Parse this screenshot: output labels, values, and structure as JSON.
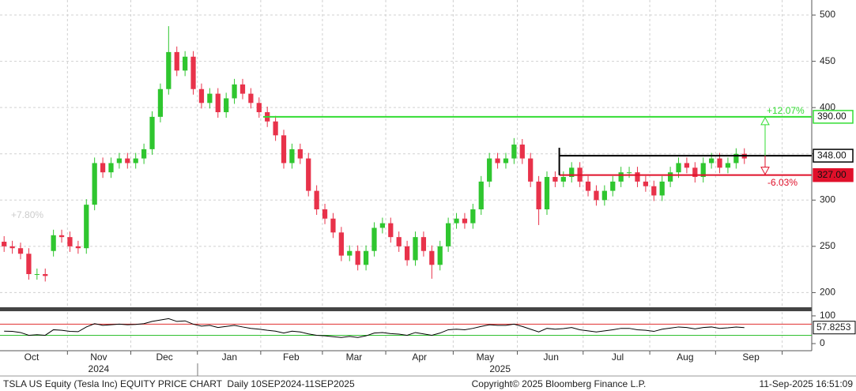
{
  "chart_data": [
    {
      "type": "candlestick",
      "xlim": [
        -0.5,
        98
      ],
      "xticks": [
        {
          "value": 3.34,
          "label": "Oct"
        },
        {
          "value": 11.5,
          "label": "Nov"
        },
        {
          "value": 19.5,
          "label": "Dec"
        },
        {
          "value": 27.4,
          "label": "Jan"
        },
        {
          "value": 34.9,
          "label": "Feb"
        },
        {
          "value": 42.55,
          "label": "Mar"
        },
        {
          "value": 50.5,
          "label": "Apr"
        },
        {
          "value": 58.5,
          "label": "May"
        },
        {
          "value": 66.5,
          "label": "Jun"
        },
        {
          "value": 74.6,
          "label": "Jul"
        },
        {
          "value": 82.8,
          "label": "Aug"
        },
        {
          "value": 90.8,
          "label": "Sep"
        }
      ],
      "year_labels": [
        {
          "value": 11.5,
          "label": "2024"
        },
        {
          "value": 60.3,
          "label": "2025"
        }
      ],
      "xgrid": [
        7.7,
        15.4,
        23.5,
        31.2,
        38.7,
        46.4,
        54.6,
        62.4,
        70.4,
        78.5,
        86.5,
        94.6
      ],
      "ylim": [
        185,
        512
      ],
      "yticks": [
        200,
        250,
        300,
        350,
        400,
        450,
        500
      ],
      "grid": true,
      "up_color": "#2fc62f",
      "down_color": "#e8324a",
      "open": [
        255,
        250,
        248,
        242,
        220,
        220,
        245,
        262,
        260,
        250,
        248,
        295,
        340,
        330,
        340,
        345,
        340,
        345,
        355,
        390,
        420,
        460,
        440,
        455,
        420,
        405,
        415,
        395,
        410,
        425,
        415,
        405,
        395,
        385,
        370,
        340,
        355,
        345,
        310,
        290,
        280,
        265,
        240,
        245,
        230,
        245,
        270,
        275,
        260,
        250,
        235,
        260,
        245,
        230,
        250,
        275,
        280,
        275,
        290,
        320,
        345,
        340,
        345,
        360,
        345,
        320,
        290,
        325,
        320,
        325,
        335,
        320,
        310,
        300,
        310,
        320,
        330,
        330,
        320,
        315,
        305,
        320,
        330,
        340,
        335,
        325,
        340,
        345,
        335,
        340,
        350
      ],
      "high": [
        261,
        256,
        254,
        248,
        226,
        226,
        268,
        268,
        266,
        256,
        301,
        346,
        346,
        346,
        351,
        351,
        351,
        361,
        396,
        426,
        488,
        466,
        461,
        461,
        426,
        421,
        421,
        416,
        431,
        431,
        421,
        411,
        401,
        391,
        376,
        361,
        361,
        351,
        316,
        296,
        286,
        271,
        251,
        251,
        251,
        276,
        281,
        281,
        266,
        256,
        266,
        266,
        251,
        256,
        281,
        286,
        286,
        296,
        326,
        351,
        351,
        351,
        367,
        366,
        351,
        326,
        331,
        331,
        331,
        341,
        341,
        326,
        316,
        316,
        326,
        336,
        336,
        336,
        326,
        321,
        326,
        336,
        346,
        346,
        341,
        346,
        351,
        351,
        346,
        356,
        356
      ],
      "low": [
        244,
        242,
        236,
        214,
        214,
        212,
        239,
        254,
        244,
        242,
        242,
        289,
        324,
        324,
        334,
        334,
        334,
        339,
        349,
        384,
        414,
        434,
        434,
        414,
        399,
        399,
        389,
        389,
        404,
        409,
        399,
        389,
        379,
        364,
        334,
        334,
        339,
        304,
        284,
        274,
        259,
        234,
        234,
        224,
        224,
        239,
        264,
        254,
        244,
        229,
        229,
        239,
        215,
        224,
        244,
        269,
        269,
        269,
        284,
        314,
        334,
        334,
        339,
        339,
        314,
        273,
        284,
        314,
        314,
        319,
        314,
        304,
        294,
        294,
        304,
        314,
        324,
        314,
        309,
        299,
        299,
        314,
        324,
        329,
        319,
        319,
        334,
        329,
        329,
        334,
        339
      ],
      "close": [
        250,
        248,
        242,
        220,
        220,
        218,
        262,
        260,
        250,
        248,
        295,
        340,
        330,
        340,
        345,
        340,
        345,
        355,
        390,
        420,
        460,
        440,
        455,
        420,
        405,
        415,
        395,
        410,
        425,
        415,
        405,
        395,
        385,
        370,
        340,
        355,
        345,
        310,
        290,
        280,
        265,
        240,
        245,
        230,
        245,
        270,
        275,
        260,
        250,
        235,
        260,
        245,
        230,
        250,
        275,
        280,
        275,
        290,
        320,
        345,
        340,
        345,
        360,
        345,
        320,
        290,
        325,
        320,
        325,
        335,
        320,
        310,
        300,
        310,
        320,
        330,
        330,
        320,
        315,
        305,
        320,
        330,
        340,
        335,
        325,
        340,
        345,
        335,
        340,
        350,
        345
      ],
      "levels": [
        {
          "value": 390,
          "label": "390.00",
          "color": "#33dd33"
        },
        {
          "value": 348,
          "label": "348.00",
          "color": "#000000"
        },
        {
          "value": 327,
          "label": "327.00",
          "color": "#e0102a"
        }
      ],
      "annotations": [
        "+12.07%",
        "-6.03%",
        "+7.80%"
      ]
    },
    {
      "type": "line",
      "ylim": [
        -20,
        114
      ],
      "yticks": [
        0,
        100
      ],
      "color": "#000000",
      "reference_lines": [
        {
          "value": 70,
          "color": "#e03030"
        },
        {
          "value": 30,
          "color": "#30c030"
        }
      ],
      "values": [
        45,
        44,
        40,
        30,
        32,
        30,
        50,
        48,
        44,
        43,
        60,
        72,
        66,
        68,
        70,
        68,
        69,
        72,
        80,
        85,
        90,
        80,
        82,
        70,
        63,
        66,
        58,
        62,
        66,
        60,
        55,
        52,
        48,
        45,
        38,
        45,
        42,
        35,
        30,
        28,
        25,
        22,
        26,
        22,
        28,
        38,
        40,
        36,
        34,
        30,
        40,
        35,
        30,
        38,
        50,
        52,
        50,
        55,
        62,
        68,
        66,
        66,
        70,
        62,
        52,
        42,
        55,
        52,
        54,
        58,
        50,
        46,
        42,
        46,
        50,
        55,
        55,
        50,
        48,
        44,
        52,
        56,
        60,
        58,
        53,
        58,
        60,
        55,
        57,
        60,
        57.8253
      ]
    }
  ],
  "footer": {
    "left": "TSLA US Equity (Tesla Inc) EQUITY PRICE CHART  Daily 10SEP2024-11SEP2025",
    "copyright": "Copyright© 2025 Bloomberg Finance L.P.",
    "timestamp": "11-Sep-2025 16:51:09"
  }
}
